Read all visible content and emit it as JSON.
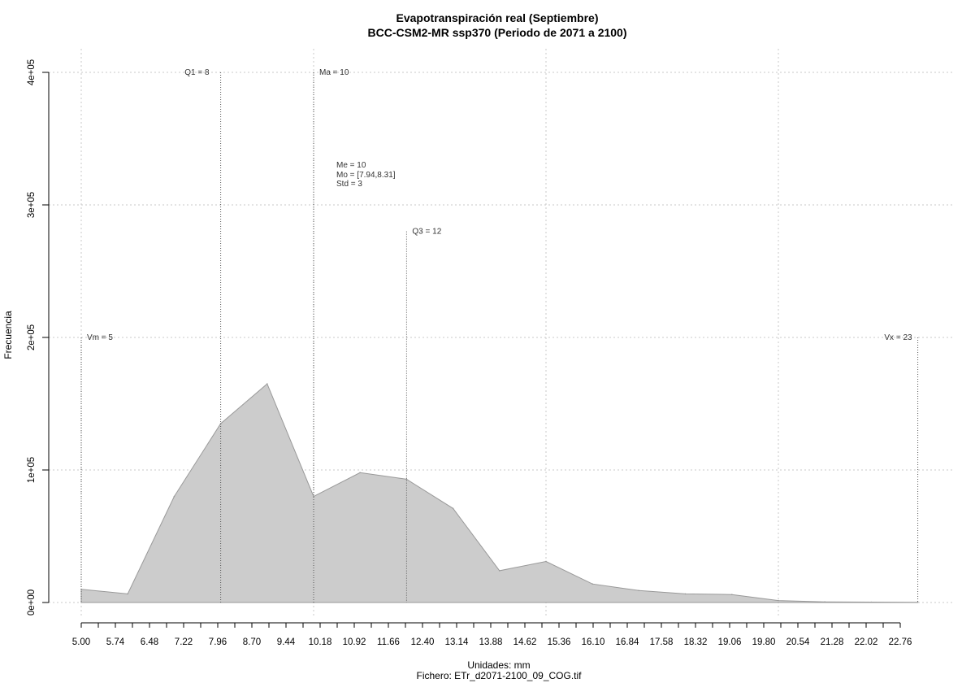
{
  "chart_data": {
    "type": "area",
    "title": "Evapotranspiración real (Septiembre)",
    "subtitle": "BCC-CSM2-MR ssp370 (Periodo de 2071 a 2100)",
    "xlabel": "Unidades: mm",
    "file_label": "Fichero: ETr_d2071-2100_09_COG.tif",
    "ylabel": "Frecuencia",
    "xlim": [
      5.0,
      22.76
    ],
    "ylim": [
      0,
      400000
    ],
    "grid": true,
    "x_ticks": [
      "5.00",
      "5.74",
      "6.48",
      "7.22",
      "7.96",
      "8.70",
      "9.44",
      "10.18",
      "10.92",
      "11.66",
      "12.40",
      "13.14",
      "13.88",
      "14.62",
      "15.36",
      "16.10",
      "16.84",
      "17.58",
      "18.32",
      "19.06",
      "19.80",
      "20.54",
      "21.28",
      "22.02",
      "22.76"
    ],
    "y_ticks": [
      "0e+00",
      "1e+05",
      "2e+05",
      "3e+05",
      "4e+05"
    ],
    "y_tick_values": [
      0,
      100000,
      200000,
      300000,
      400000
    ],
    "x_grid": [
      5,
      10,
      15,
      20
    ],
    "series": [
      {
        "x": [
          5.0,
          6.0,
          7.0,
          8.0,
          9.0,
          10.0,
          11.0,
          12.0,
          13.0,
          14.0,
          15.0,
          16.0,
          17.0,
          18.0,
          19.0,
          20.0,
          21.0,
          22.0,
          23.0
        ],
        "values": [
          10000,
          6500,
          80000,
          135000,
          165000,
          80000,
          98000,
          93000,
          71000,
          24000,
          31000,
          14000,
          9000,
          6500,
          6000,
          1500,
          500,
          300,
          200
        ]
      }
    ],
    "annotations": [
      {
        "name": "vm",
        "label": "Vm = 5",
        "x": 5,
        "y_top": 200000
      },
      {
        "name": "q1",
        "label": "Q1 = 8",
        "x": 8,
        "y_top": 400000
      },
      {
        "name": "ma",
        "label": "Ma = 10",
        "x": 10,
        "y_top": 400000
      },
      {
        "name": "q3",
        "label": "Q3 = 12",
        "x": 12,
        "y_top": 280000
      },
      {
        "name": "vx",
        "label": "Vx = 23",
        "x": 23,
        "y_top": 200000
      }
    ],
    "stats": [
      "Me = 10",
      "Mo = [7.94,8.31]",
      "Std = 3"
    ]
  }
}
